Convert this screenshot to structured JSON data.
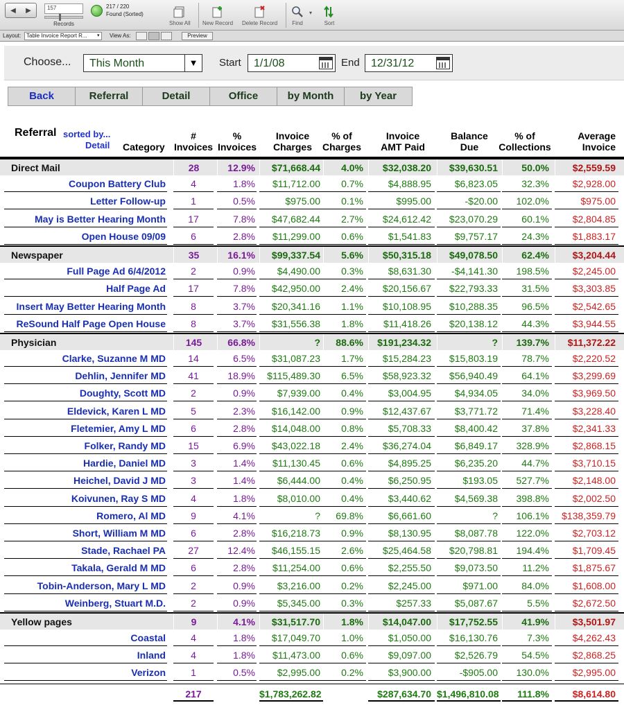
{
  "toolbar": {
    "record_number": "157",
    "records_label": "Records",
    "found_count": "217 / 220",
    "found_status": "Found (Sorted)",
    "buttons": [
      {
        "label": "Show All",
        "icon": "show-all-icon"
      },
      {
        "label": "New Record",
        "icon": "new-record-icon"
      },
      {
        "label": "Delete Record",
        "icon": "delete-record-icon"
      },
      {
        "label": "Find",
        "icon": "find-icon"
      },
      {
        "label": "Sort",
        "icon": "sort-icon"
      }
    ]
  },
  "layout_bar": {
    "layout_label": "Layout:",
    "layout_value": "Table Invoice Report R...",
    "view_as_label": "View As:",
    "preview_label": "Preview"
  },
  "filters": {
    "choose_label": "Choose...",
    "choose_value": "This Month",
    "start_label": "Start",
    "start_value": "1/1/08",
    "end_label": "End",
    "end_value": "12/31/12"
  },
  "tabs": [
    "Back",
    "Referral",
    "Detail",
    "Office",
    "by Month",
    "by Year"
  ],
  "columns": {
    "referral": "Referral",
    "sorted_by": "sorted by...",
    "detail": "Detail",
    "category": "Category",
    "invoices_1": "#",
    "invoices_2": "Invoices",
    "pct_invoices_1": "%",
    "pct_invoices_2": "Invoices",
    "charges_1": "Invoice",
    "charges_2": "Charges",
    "pct_charges_1": "% of",
    "pct_charges_2": "Charges",
    "paid_1": "Invoice",
    "paid_2": "AMT Paid",
    "balance_1": "Balance",
    "balance_2": "Due",
    "collections_1": "% of",
    "collections_2": "Collections",
    "average_1": "Average",
    "average_2": "Invoice"
  },
  "rows": [
    {
      "type": "group",
      "name": "Direct Mail",
      "inv": "28",
      "pct": "12.9%",
      "chg": "$71,668.44",
      "pchg": "4.0%",
      "paid": "$32,038.20",
      "bal": "$39,630.51",
      "col": "50.0%",
      "avg": "$2,559.59"
    },
    {
      "type": "detail",
      "name": "Coupon Battery Club",
      "inv": "4",
      "pct": "1.8%",
      "chg": "$11,712.00",
      "pchg": "0.7%",
      "paid": "$4,888.95",
      "bal": "$6,823.05",
      "col": "32.3%",
      "avg": "$2,928.00"
    },
    {
      "type": "detail",
      "name": "Letter Follow-up",
      "inv": "1",
      "pct": "0.5%",
      "chg": "$975.00",
      "pchg": "0.1%",
      "paid": "$995.00",
      "bal": "-$20.00",
      "col": "102.0%",
      "avg": "$975.00"
    },
    {
      "type": "detail",
      "name": "May is Better Hearing Month",
      "inv": "17",
      "pct": "7.8%",
      "chg": "$47,682.44",
      "pchg": "2.7%",
      "paid": "$24,612.42",
      "bal": "$23,070.29",
      "col": "60.1%",
      "avg": "$2,804.85"
    },
    {
      "type": "detail",
      "name": "Open House 09/09",
      "inv": "6",
      "pct": "2.8%",
      "chg": "$11,299.00",
      "pchg": "0.6%",
      "paid": "$1,541.83",
      "bal": "$9,757.17",
      "col": "24.3%",
      "avg": "$1,883.17"
    },
    {
      "type": "group",
      "name": "Newspaper",
      "inv": "35",
      "pct": "16.1%",
      "chg": "$99,337.54",
      "pchg": "5.6%",
      "paid": "$50,315.18",
      "bal": "$49,078.50",
      "col": "62.4%",
      "avg": "$3,204.44"
    },
    {
      "type": "detail",
      "name": "Full Page Ad 6/4/2012",
      "inv": "2",
      "pct": "0.9%",
      "chg": "$4,490.00",
      "pchg": "0.3%",
      "paid": "$8,631.30",
      "bal": "-$4,141.30",
      "col": "198.5%",
      "avg": "$2,245.00"
    },
    {
      "type": "detail",
      "name": "Half Page Ad",
      "inv": "17",
      "pct": "7.8%",
      "chg": "$42,950.00",
      "pchg": "2.4%",
      "paid": "$20,156.67",
      "bal": "$22,793.33",
      "col": "31.5%",
      "avg": "$3,303.85"
    },
    {
      "type": "detail",
      "name": "Insert May Better Hearing Month",
      "inv": "8",
      "pct": "3.7%",
      "chg": "$20,341.16",
      "pchg": "1.1%",
      "paid": "$10,108.95",
      "bal": "$10,288.35",
      "col": "96.5%",
      "avg": "$2,542.65"
    },
    {
      "type": "detail",
      "name": "ReSound Half Page Open House",
      "inv": "8",
      "pct": "3.7%",
      "chg": "$31,556.38",
      "pchg": "1.8%",
      "paid": "$11,418.26",
      "bal": "$20,138.12",
      "col": "44.3%",
      "avg": "$3,944.55"
    },
    {
      "type": "group",
      "name": "Physician",
      "inv": "145",
      "pct": "66.8%",
      "chg": "?",
      "pchg": "88.6%",
      "paid": "$191,234.32",
      "bal": "?",
      "col": "139.7%",
      "avg": "$11,372.22"
    },
    {
      "type": "detail",
      "name": "Clarke, Suzanne M MD",
      "inv": "14",
      "pct": "6.5%",
      "chg": "$31,087.23",
      "pchg": "1.7%",
      "paid": "$15,284.23",
      "bal": "$15,803.19",
      "col": "78.7%",
      "avg": "$2,220.52"
    },
    {
      "type": "detail",
      "name": "Dehlin, Jennifer MD",
      "inv": "41",
      "pct": "18.9%",
      "chg": "$115,489.30",
      "pchg": "6.5%",
      "paid": "$58,923.32",
      "bal": "$56,940.49",
      "col": "64.1%",
      "avg": "$3,299.69"
    },
    {
      "type": "detail",
      "name": "Doughty, Scott MD",
      "inv": "2",
      "pct": "0.9%",
      "chg": "$7,939.00",
      "pchg": "0.4%",
      "paid": "$3,004.95",
      "bal": "$4,934.05",
      "col": "34.0%",
      "avg": "$3,969.50"
    },
    {
      "type": "detail",
      "name": "Eldevick, Karen L MD",
      "inv": "5",
      "pct": "2.3%",
      "chg": "$16,142.00",
      "pchg": "0.9%",
      "paid": "$12,437.67",
      "bal": "$3,771.72",
      "col": "71.4%",
      "avg": "$3,228.40"
    },
    {
      "type": "detail",
      "name": "Fletemier, Amy L MD",
      "inv": "6",
      "pct": "2.8%",
      "chg": "$14,048.00",
      "pchg": "0.8%",
      "paid": "$5,708.33",
      "bal": "$8,400.42",
      "col": "37.8%",
      "avg": "$2,341.33"
    },
    {
      "type": "detail",
      "name": "Folker, Randy MD",
      "inv": "15",
      "pct": "6.9%",
      "chg": "$43,022.18",
      "pchg": "2.4%",
      "paid": "$36,274.04",
      "bal": "$6,849.17",
      "col": "328.9%",
      "avg": "$2,868.15"
    },
    {
      "type": "detail",
      "name": "Hardie, Daniel MD",
      "inv": "3",
      "pct": "1.4%",
      "chg": "$11,130.45",
      "pchg": "0.6%",
      "paid": "$4,895.25",
      "bal": "$6,235.20",
      "col": "44.7%",
      "avg": "$3,710.15"
    },
    {
      "type": "detail",
      "name": "Heichel, David J MD",
      "inv": "3",
      "pct": "1.4%",
      "chg": "$6,444.00",
      "pchg": "0.4%",
      "paid": "$6,250.95",
      "bal": "$193.05",
      "col": "527.7%",
      "avg": "$2,148.00"
    },
    {
      "type": "detail",
      "name": "Koivunen, Ray S MD",
      "inv": "4",
      "pct": "1.8%",
      "chg": "$8,010.00",
      "pchg": "0.4%",
      "paid": "$3,440.62",
      "bal": "$4,569.38",
      "col": "398.8%",
      "avg": "$2,002.50"
    },
    {
      "type": "detail",
      "name": "Romero, Al MD",
      "inv": "9",
      "pct": "4.1%",
      "chg": "?",
      "pchg": "69.8%",
      "paid": "$6,661.60",
      "bal": "?",
      "col": "106.1%",
      "avg": "$138,359.79"
    },
    {
      "type": "detail",
      "name": "Short, William M MD",
      "inv": "6",
      "pct": "2.8%",
      "chg": "$16,218.73",
      "pchg": "0.9%",
      "paid": "$8,130.95",
      "bal": "$8,087.78",
      "col": "122.0%",
      "avg": "$2,703.12"
    },
    {
      "type": "detail",
      "name": "Stade, Rachael PA",
      "inv": "27",
      "pct": "12.4%",
      "chg": "$46,155.15",
      "pchg": "2.6%",
      "paid": "$25,464.58",
      "bal": "$20,798.81",
      "col": "194.4%",
      "avg": "$1,709.45"
    },
    {
      "type": "detail",
      "name": "Takala, Gerald M MD",
      "inv": "6",
      "pct": "2.8%",
      "chg": "$11,254.00",
      "pchg": "0.6%",
      "paid": "$2,255.50",
      "bal": "$9,073.50",
      "col": "11.2%",
      "avg": "$1,875.67"
    },
    {
      "type": "detail",
      "name": "Tobin-Anderson, Mary L MD",
      "inv": "2",
      "pct": "0.9%",
      "chg": "$3,216.00",
      "pchg": "0.2%",
      "paid": "$2,245.00",
      "bal": "$971.00",
      "col": "84.0%",
      "avg": "$1,608.00"
    },
    {
      "type": "detail",
      "name": "Weinberg, Stuart M.D.",
      "inv": "2",
      "pct": "0.9%",
      "chg": "$5,345.00",
      "pchg": "0.3%",
      "paid": "$257.33",
      "bal": "$5,087.67",
      "col": "5.5%",
      "avg": "$2,672.50"
    },
    {
      "type": "group",
      "name": "Yellow pages",
      "inv": "9",
      "pct": "4.1%",
      "chg": "$31,517.70",
      "pchg": "1.8%",
      "paid": "$14,047.00",
      "bal": "$17,752.55",
      "col": "41.9%",
      "avg": "$3,501.97"
    },
    {
      "type": "detail",
      "name": "Coastal",
      "inv": "4",
      "pct": "1.8%",
      "chg": "$17,049.70",
      "pchg": "1.0%",
      "paid": "$1,050.00",
      "bal": "$16,130.76",
      "col": "7.3%",
      "avg": "$4,262.43"
    },
    {
      "type": "detail",
      "name": "Inland",
      "inv": "4",
      "pct": "1.8%",
      "chg": "$11,473.00",
      "pchg": "0.6%",
      "paid": "$9,097.00",
      "bal": "$2,526.79",
      "col": "54.5%",
      "avg": "$2,868.25"
    },
    {
      "type": "detail",
      "name": "Verizon",
      "inv": "1",
      "pct": "0.5%",
      "chg": "$2,995.00",
      "pchg": "0.2%",
      "paid": "$3,900.00",
      "bal": "-$905.00",
      "col": "130.0%",
      "avg": "$2,995.00"
    }
  ],
  "totals": {
    "inv": "217",
    "chg": "$1,783,262.82",
    "paid": "$287,634.70",
    "bal": "$1,496,810.08",
    "col": "111.8%",
    "avg": "$8,614.80"
  }
}
